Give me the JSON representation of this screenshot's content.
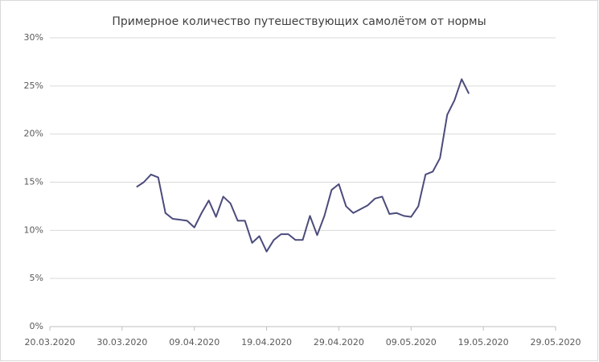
{
  "chart_data": {
    "type": "line",
    "title": "Примерное количество путешествующих самолётом от нормы",
    "x": [
      "01.04.2020",
      "02.04.2020",
      "03.04.2020",
      "04.04.2020",
      "05.04.2020",
      "06.04.2020",
      "07.04.2020",
      "08.04.2020",
      "09.04.2020",
      "10.04.2020",
      "11.04.2020",
      "12.04.2020",
      "13.04.2020",
      "14.04.2020",
      "15.04.2020",
      "16.04.2020",
      "17.04.2020",
      "18.04.2020",
      "19.04.2020",
      "20.04.2020",
      "21.04.2020",
      "22.04.2020",
      "23.04.2020",
      "24.04.2020",
      "25.04.2020",
      "26.04.2020",
      "27.04.2020",
      "28.04.2020",
      "29.04.2020",
      "30.04.2020",
      "01.05.2020",
      "02.05.2020",
      "03.05.2020",
      "04.05.2020",
      "05.05.2020",
      "06.05.2020",
      "07.05.2020",
      "08.05.2020",
      "09.05.2020",
      "10.05.2020",
      "11.05.2020",
      "12.05.2020",
      "13.05.2020",
      "14.05.2020",
      "15.05.2020",
      "16.05.2020",
      "17.05.2020"
    ],
    "series": [
      {
        "color": "#4b4b7c",
        "values": [
          14.5,
          15.0,
          15.8,
          15.5,
          11.8,
          11.2,
          11.1,
          11.0,
          10.3,
          11.8,
          13.1,
          11.4,
          13.5,
          12.8,
          11.0,
          11.0,
          8.7,
          9.4,
          7.8,
          9.0,
          9.6,
          9.6,
          9.0,
          9.0,
          11.5,
          9.5,
          11.5,
          14.2,
          14.8,
          12.5,
          11.8,
          12.2,
          12.6,
          13.3,
          13.5,
          11.7,
          11.8,
          11.5,
          11.4,
          12.5,
          15.8,
          16.1,
          17.5,
          22.0,
          23.5,
          25.7,
          24.2
        ]
      }
    ],
    "xlim": [
      "20.03.2020",
      "29.05.2020"
    ],
    "xticks": [
      "20.03.2020",
      "30.03.2020",
      "09.04.2020",
      "19.04.2020",
      "29.04.2020",
      "09.05.2020",
      "19.05.2020",
      "29.05.2020"
    ],
    "ylim": [
      0,
      30
    ],
    "yticks": [
      {
        "value": 0,
        "label": "0%"
      },
      {
        "value": 5,
        "label": "5%"
      },
      {
        "value": 10,
        "label": "10%"
      },
      {
        "value": 15,
        "label": "15%"
      },
      {
        "value": 20,
        "label": "20%"
      },
      {
        "value": 25,
        "label": "25%"
      },
      {
        "value": 30,
        "label": "30%"
      }
    ],
    "grid": true
  }
}
